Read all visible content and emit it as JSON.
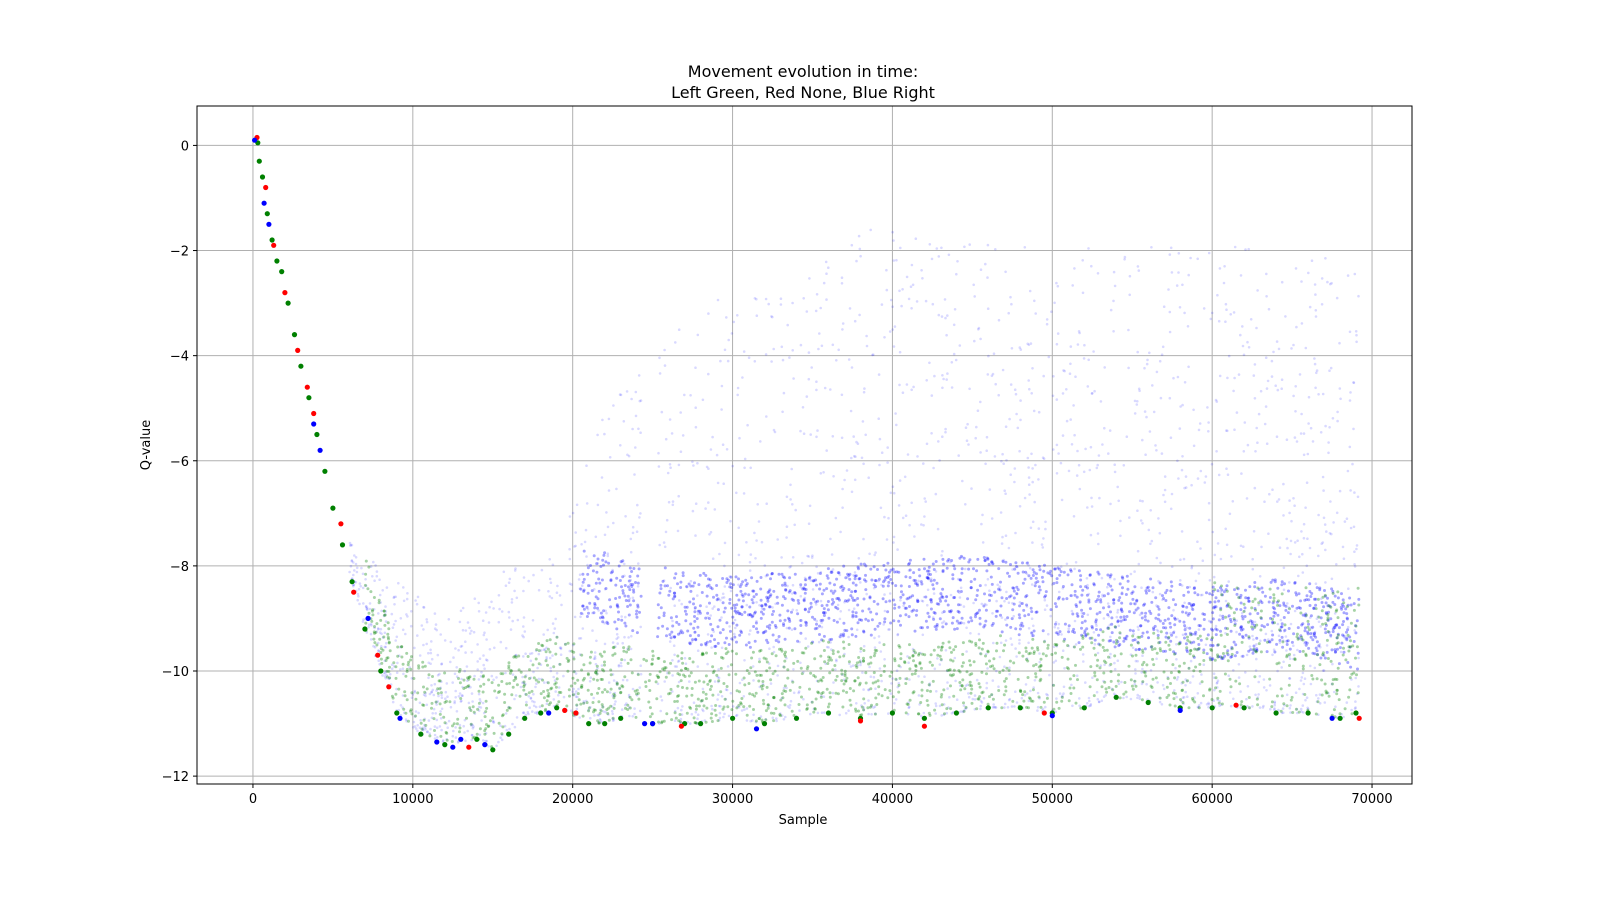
{
  "chart_data": {
    "type": "scatter",
    "title_line1": "Movement evolution in time:",
    "title_line2": "Left Green, Red None, Blue Right",
    "xlabel": "Sample",
    "ylabel": "Q-value",
    "xlim": [
      -3500,
      72500
    ],
    "ylim": [
      -12.15,
      0.75
    ],
    "xticks": [
      0,
      10000,
      20000,
      30000,
      40000,
      50000,
      60000,
      70000
    ],
    "xtick_labels": [
      "0",
      "10000",
      "20000",
      "30000",
      "40000",
      "50000",
      "60000",
      "70000"
    ],
    "yticks": [
      0,
      -2,
      -4,
      -6,
      -8,
      -10,
      -12
    ],
    "ytick_labels": [
      "0",
      "−2",
      "−4",
      "−6",
      "−8",
      "−10",
      "−12"
    ],
    "grid": true,
    "series": [
      {
        "color": "#008000",
        "points": [
          [
            300,
            0.05
          ],
          [
            400,
            -0.3
          ],
          [
            600,
            -0.6
          ],
          [
            900,
            -1.3
          ],
          [
            1200,
            -1.8
          ],
          [
            1500,
            -2.2
          ],
          [
            1800,
            -2.4
          ],
          [
            2200,
            -3.0
          ],
          [
            2600,
            -3.6
          ],
          [
            3000,
            -4.2
          ],
          [
            3500,
            -4.8
          ],
          [
            4000,
            -5.5
          ],
          [
            4500,
            -6.2
          ],
          [
            5000,
            -6.9
          ],
          [
            5600,
            -7.6
          ],
          [
            6200,
            -8.3
          ],
          [
            7000,
            -9.2
          ],
          [
            8000,
            -10.0
          ],
          [
            9000,
            -10.8
          ],
          [
            10500,
            -11.2
          ],
          [
            12000,
            -11.4
          ],
          [
            14000,
            -11.3
          ],
          [
            15000,
            -11.5
          ],
          [
            16000,
            -11.2
          ],
          [
            17000,
            -10.9
          ],
          [
            18000,
            -10.8
          ],
          [
            19000,
            -10.7
          ],
          [
            21000,
            -11.0
          ],
          [
            22000,
            -11.0
          ],
          [
            23000,
            -10.9
          ],
          [
            25000,
            -11.0
          ],
          [
            27000,
            -11.0
          ],
          [
            28000,
            -11.0
          ],
          [
            30000,
            -10.9
          ],
          [
            32000,
            -11.0
          ],
          [
            34000,
            -10.9
          ],
          [
            36000,
            -10.8
          ],
          [
            38000,
            -10.9
          ],
          [
            40000,
            -10.8
          ],
          [
            42000,
            -10.9
          ],
          [
            44000,
            -10.8
          ],
          [
            46000,
            -10.7
          ],
          [
            48000,
            -10.7
          ],
          [
            50000,
            -10.8
          ],
          [
            52000,
            -10.7
          ],
          [
            54000,
            -10.5
          ],
          [
            56000,
            -10.6
          ],
          [
            58000,
            -10.7
          ],
          [
            60000,
            -10.7
          ],
          [
            62000,
            -10.7
          ],
          [
            64000,
            -10.8
          ],
          [
            66000,
            -10.8
          ],
          [
            68000,
            -10.9
          ],
          [
            69000,
            -10.8
          ]
        ]
      },
      {
        "color": "#ff0000",
        "points": [
          [
            250,
            0.15
          ],
          [
            800,
            -0.8
          ],
          [
            1300,
            -1.9
          ],
          [
            2000,
            -2.8
          ],
          [
            2800,
            -3.9
          ],
          [
            3400,
            -4.6
          ],
          [
            3800,
            -5.1
          ],
          [
            5500,
            -7.2
          ],
          [
            6300,
            -8.5
          ],
          [
            7800,
            -9.7
          ],
          [
            8500,
            -10.3
          ],
          [
            13500,
            -11.45
          ],
          [
            19500,
            -10.75
          ],
          [
            20200,
            -10.8
          ],
          [
            26800,
            -11.05
          ],
          [
            38000,
            -10.95
          ],
          [
            42000,
            -11.05
          ],
          [
            49500,
            -10.8
          ],
          [
            61500,
            -10.65
          ],
          [
            69200,
            -10.9
          ]
        ]
      },
      {
        "color": "#0000ff",
        "points": [
          [
            100,
            0.1
          ],
          [
            700,
            -1.1
          ],
          [
            1000,
            -1.5
          ],
          [
            3800,
            -5.3
          ],
          [
            4200,
            -5.8
          ],
          [
            7200,
            -9.0
          ],
          [
            9200,
            -10.9
          ],
          [
            11500,
            -11.35
          ],
          [
            12500,
            -11.45
          ],
          [
            13000,
            -11.3
          ],
          [
            14500,
            -11.4
          ],
          [
            18500,
            -10.8
          ],
          [
            24500,
            -11.0
          ],
          [
            25000,
            -11.0
          ],
          [
            31500,
            -11.1
          ],
          [
            50000,
            -10.85
          ],
          [
            58000,
            -10.75
          ],
          [
            67500,
            -10.9
          ]
        ]
      }
    ]
  }
}
